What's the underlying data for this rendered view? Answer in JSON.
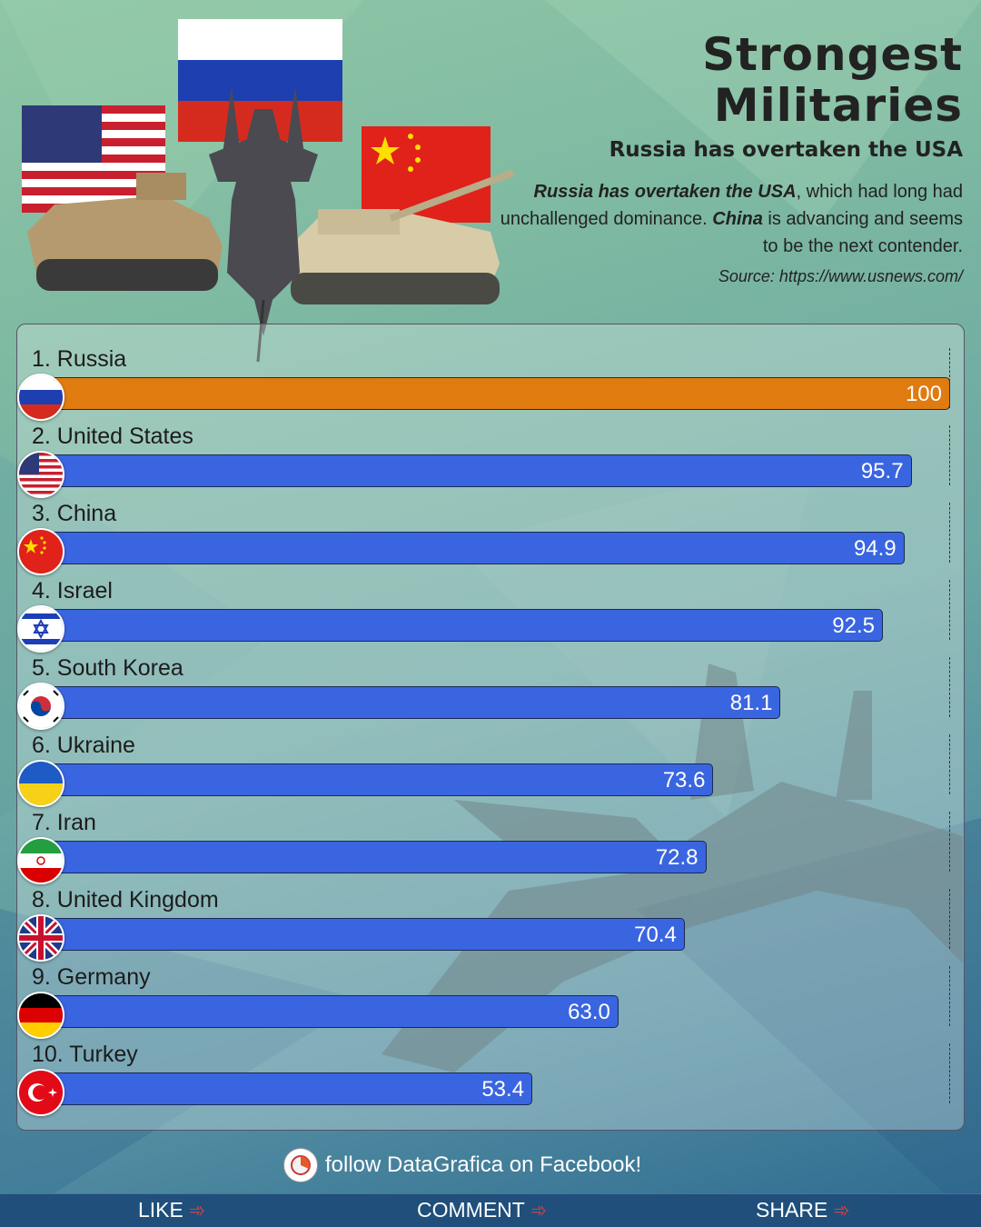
{
  "header": {
    "title_line1": "Strongest",
    "title_line2": "Militaries",
    "subtitle": "Russia has overtaken the USA",
    "desc_bold1": "Russia has overtaken the USA",
    "desc_text1": ", which had long had unchallenged dominance. ",
    "desc_bold2": "China",
    "desc_text2": " is advancing and seems to be the next contender.",
    "source": "Source: https://www.usnews.com/"
  },
  "chart_data": {
    "type": "bar",
    "orientation": "horizontal",
    "xlim": [
      0,
      100
    ],
    "labels": [
      "1. Russia",
      "2. United States",
      "3. China",
      "4. Israel",
      "5. South Korea",
      "6. Ukraine",
      "7. Iran",
      "8. United Kingdom",
      "9. Germany",
      "10. Turkey"
    ],
    "categories": [
      "Russia",
      "United States",
      "China",
      "Israel",
      "South Korea",
      "Ukraine",
      "Iran",
      "United Kingdom",
      "Germany",
      "Turkey"
    ],
    "values": [
      100,
      95.7,
      94.9,
      92.5,
      81.1,
      73.6,
      72.8,
      70.4,
      63.0,
      53.4
    ],
    "value_labels": [
      "100",
      "95.7",
      "94.9",
      "92.5",
      "81.1",
      "73.6",
      "72.8",
      "70.4",
      "63.0",
      "53.4"
    ],
    "flags": [
      "russia-flag",
      "usa-flag",
      "china-flag",
      "israel-flag",
      "south-korea-flag",
      "ukraine-flag",
      "iran-flag",
      "uk-flag",
      "germany-flag",
      "turkey-flag"
    ],
    "colors": [
      "#e07b10",
      "#3a65e0",
      "#3a65e0",
      "#3a65e0",
      "#3a65e0",
      "#3a65e0",
      "#3a65e0",
      "#3a65e0",
      "#3a65e0",
      "#3a65e0"
    ]
  },
  "follow": {
    "text": "follow DataGrafica on Facebook!"
  },
  "footer": {
    "like": "LIKE",
    "comment": "COMMENT",
    "share": "SHARE"
  }
}
